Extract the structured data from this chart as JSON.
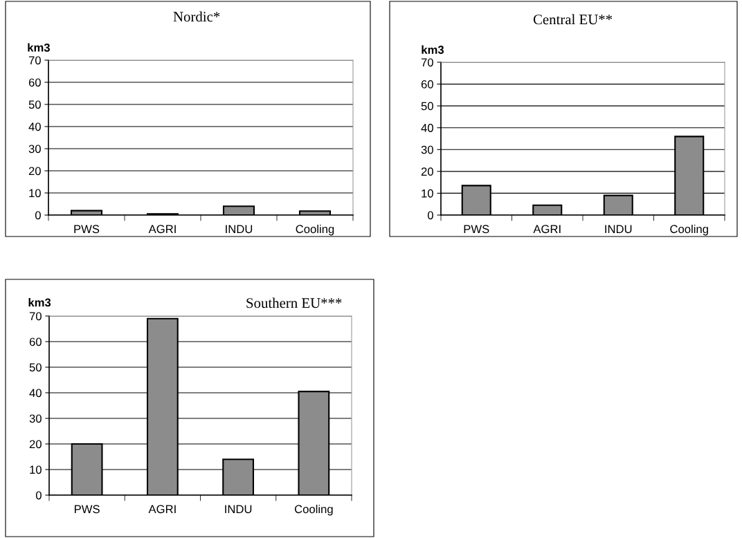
{
  "chart_data": [
    {
      "type": "bar",
      "title": "Nordic*",
      "ylabel": "km3",
      "categories": [
        "PWS",
        "AGRI",
        "INDU",
        "Cooling"
      ],
      "values": [
        2,
        0.5,
        4,
        1.8
      ],
      "color": "#8c8c8c",
      "ylim": [
        0,
        70
      ],
      "yticks": [
        0,
        10,
        20,
        30,
        40,
        50,
        60,
        70
      ],
      "grid": "y",
      "legend": false
    },
    {
      "type": "bar",
      "title": "Central EU**",
      "ylabel": "km3",
      "categories": [
        "PWS",
        "AGRI",
        "INDU",
        "Cooling"
      ],
      "values": [
        13.5,
        4.5,
        9,
        36
      ],
      "color": "#8c8c8c",
      "ylim": [
        0,
        70
      ],
      "yticks": [
        0,
        10,
        20,
        30,
        40,
        50,
        60,
        70
      ],
      "grid": "y",
      "legend": false
    },
    {
      "type": "bar",
      "title": "Southern EU***",
      "ylabel": "km3",
      "categories": [
        "PWS",
        "AGRI",
        "INDU",
        "Cooling"
      ],
      "values": [
        20,
        69,
        14,
        40.5
      ],
      "color": "#8c8c8c",
      "ylim": [
        0,
        70
      ],
      "yticks": [
        0,
        10,
        20,
        30,
        40,
        50,
        60,
        70
      ],
      "grid": "y",
      "legend": false
    }
  ]
}
